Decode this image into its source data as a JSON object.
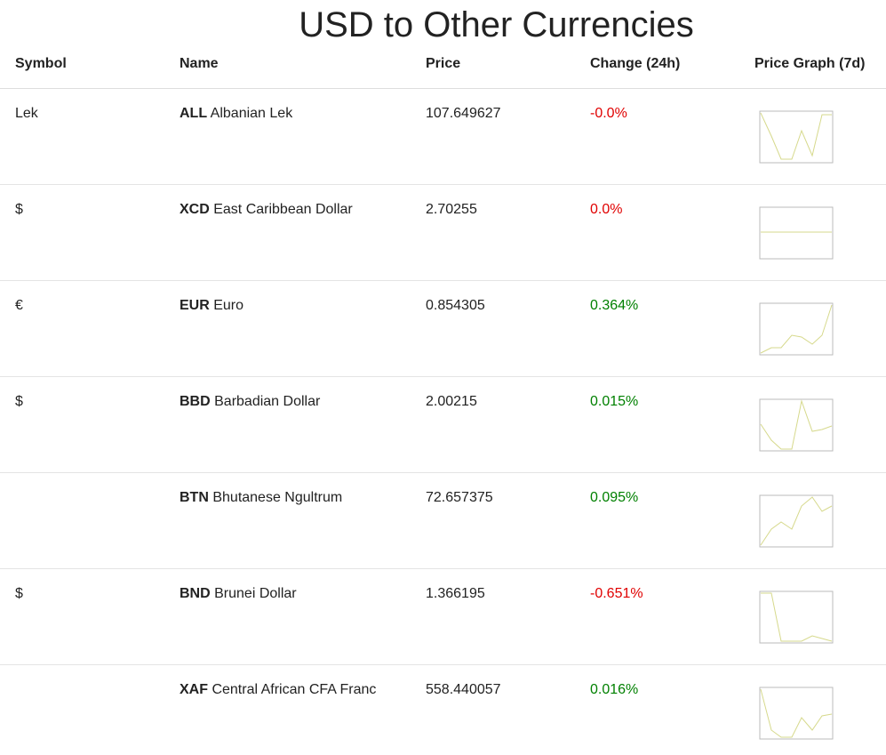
{
  "header": {
    "title": "USD to Other Currencies"
  },
  "table": {
    "columns": [
      "Symbol",
      "Name",
      "Price",
      "Change (24h)",
      "Price Graph (7d)"
    ],
    "rows": [
      {
        "symbol": "Lek",
        "code": "ALL",
        "name": "Albanian Lek",
        "price": "107.649627",
        "change": "-0.0%",
        "change_color": "#e00000"
      },
      {
        "symbol": "$",
        "code": "XCD",
        "name": "East Caribbean Dollar",
        "price": "2.70255",
        "change": "0.0%",
        "change_color": "#e00000"
      },
      {
        "symbol": "€",
        "code": "EUR",
        "name": "Euro",
        "price": "0.854305",
        "change": "0.364%",
        "change_color": "#008000"
      },
      {
        "symbol": "$",
        "code": "BBD",
        "name": "Barbadian Dollar",
        "price": "2.00215",
        "change": "0.015%",
        "change_color": "#008000"
      },
      {
        "code": "BTN",
        "name": "Bhutanese Ngultrum",
        "price": "72.657375",
        "change": "0.095%",
        "change_color": "#008000"
      },
      {
        "symbol": "$",
        "code": "BND",
        "name": "Brunei Dollar",
        "price": "1.366195",
        "change": "-0.651%",
        "change_color": "#e00000"
      },
      {
        "code": "XAF",
        "name": "Central African CFA Franc",
        "price": "558.440057",
        "change": "0.016%",
        "change_color": "#008000"
      }
    ]
  }
}
